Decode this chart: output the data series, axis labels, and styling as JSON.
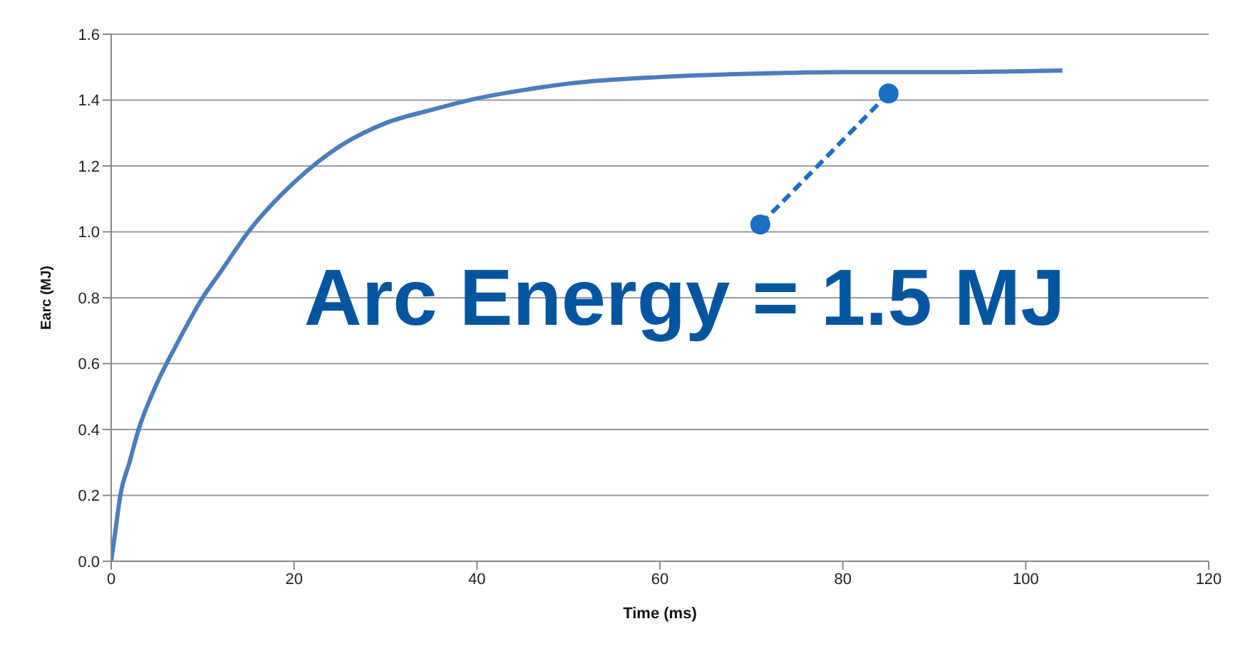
{
  "chart_data": {
    "type": "line",
    "xlabel": "Time (ms)",
    "ylabel": "Earc (MJ)",
    "x": [
      0,
      0.5,
      1,
      2,
      3,
      5,
      7,
      10,
      12,
      15,
      20,
      25,
      30,
      35,
      40,
      45,
      50,
      60,
      70,
      80,
      90,
      104
    ],
    "series": [
      {
        "color": "#4a7ebb",
        "values": [
          0,
          0.1,
          0.2,
          0.3,
          0.4,
          0.54,
          0.65,
          0.8,
          0.88,
          1.0,
          1.15,
          1.26,
          1.33,
          1.37,
          1.405,
          1.43,
          1.45,
          1.47,
          1.48,
          1.485,
          1.485,
          1.49
        ]
      }
    ],
    "xlim": [
      0,
      120
    ],
    "xticks": [
      0,
      20,
      40,
      60,
      80,
      100,
      120
    ],
    "ylim": [
      0,
      1.6
    ],
    "yticks": [
      {
        "value": 0,
        "label": "0.0"
      },
      {
        "value": 0.2,
        "label": "0.2"
      },
      {
        "value": 0.4,
        "label": "0.4"
      },
      {
        "value": 0.6,
        "label": "0.6"
      },
      {
        "value": 0.8,
        "label": "0.8"
      },
      {
        "value": 1.0,
        "label": "1.0"
      },
      {
        "value": 1.2,
        "label": "1.2"
      },
      {
        "value": 1.4,
        "label": "1.4"
      },
      {
        "value": 1.6,
        "label": "1.6"
      }
    ],
    "grid": "y",
    "marker": "none",
    "line_style": "solid",
    "annotations": [
      {
        "text": "Arc Energy = 1.5 MJ",
        "x": 85,
        "y": 1.42
      }
    ]
  }
}
